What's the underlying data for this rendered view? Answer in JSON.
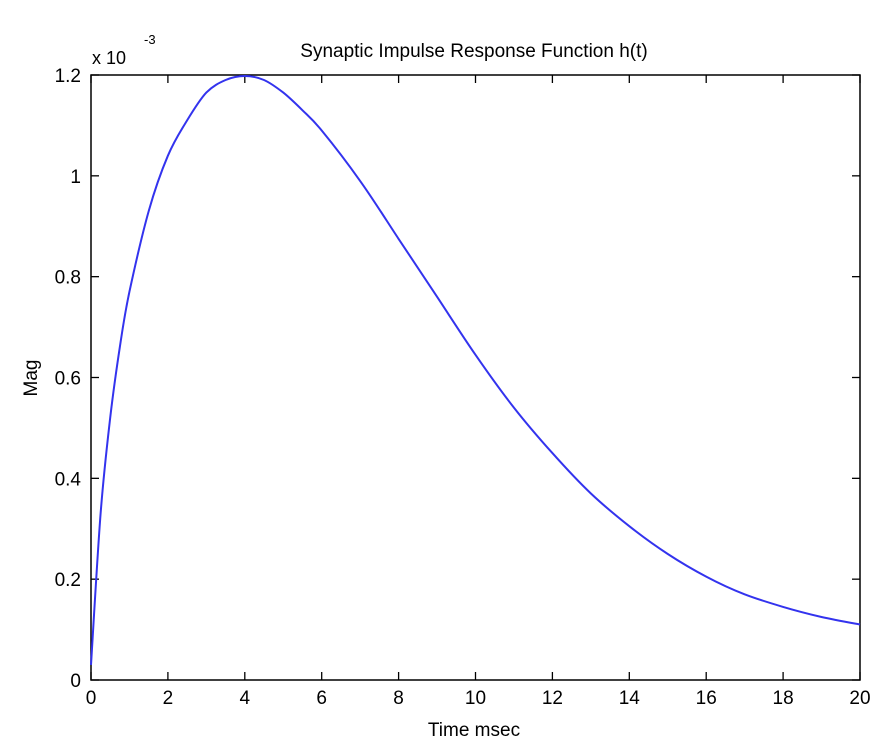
{
  "chart_data": {
    "type": "line",
    "title": "Synaptic Impulse Response Function h(t)",
    "xlabel": "Time msec",
    "ylabel": "Mag",
    "y_multiplier_label": "x 10",
    "y_multiplier_exponent": "-3",
    "xlim": [
      0,
      20
    ],
    "ylim": [
      0,
      1.2
    ],
    "x_ticks": [
      0,
      2,
      4,
      6,
      8,
      10,
      12,
      14,
      16,
      18,
      20
    ],
    "x_tick_labels": [
      "0",
      "2",
      "4",
      "6",
      "8",
      "10",
      "12",
      "14",
      "16",
      "18",
      "20"
    ],
    "y_ticks": [
      0,
      0.2,
      0.4,
      0.6,
      0.8,
      1.0,
      1.2
    ],
    "y_tick_labels": [
      "0",
      "0.2",
      "0.4",
      "0.6",
      "0.8",
      "1",
      "1.2"
    ],
    "grid": false,
    "line_color": "#3333ee",
    "series": [
      {
        "x": [
          0,
          0.25,
          0.5,
          0.75,
          1,
          1.5,
          2,
          2.5,
          3,
          3.5,
          4,
          4.5,
          5,
          5.5,
          6,
          7,
          8,
          9,
          10,
          11,
          12,
          13,
          14,
          15,
          16,
          17,
          18,
          19,
          20
        ],
        "values": [
          0.03,
          0.33,
          0.52,
          0.66,
          0.77,
          0.93,
          1.04,
          1.11,
          1.165,
          1.19,
          1.198,
          1.19,
          1.165,
          1.13,
          1.09,
          0.99,
          0.875,
          0.76,
          0.645,
          0.54,
          0.45,
          0.37,
          0.305,
          0.25,
          0.205,
          0.17,
          0.145,
          0.125,
          0.11
        ]
      }
    ]
  }
}
